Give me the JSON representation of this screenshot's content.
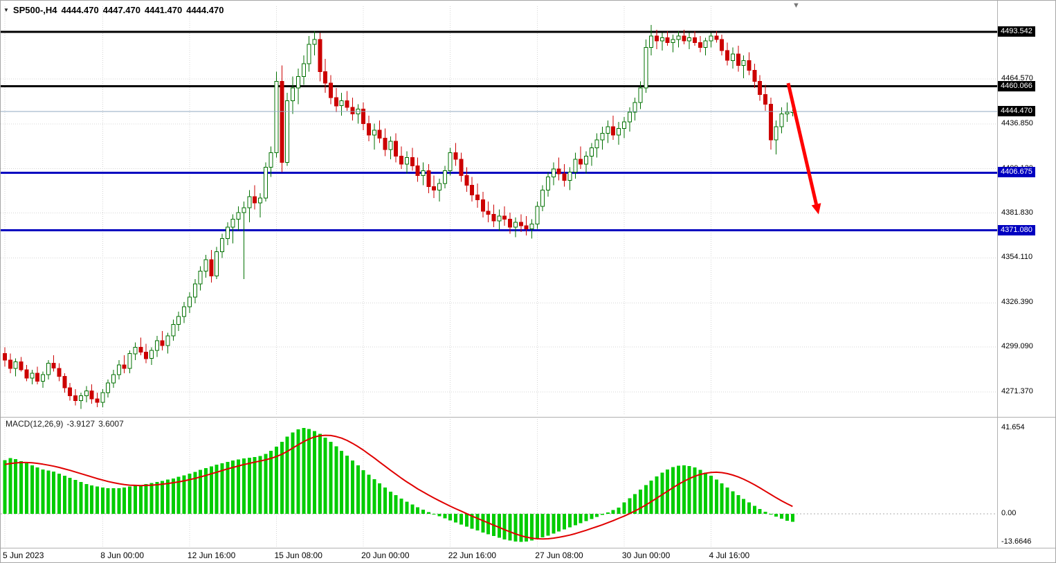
{
  "header": {
    "title": "SP500-,H4",
    "open": "4444.470",
    "high": "4447.470",
    "low": "4441.470",
    "close": "4444.470"
  },
  "macd_label": {
    "name": "MACD(12,26,9)",
    "value": "-3.9127",
    "signal": "3.6007"
  },
  "colors": {
    "up_candle": "#FFFFFF",
    "up_border": "#007000",
    "down_candle": "#CC0000",
    "macd_bar": "#00CC00",
    "macd_signal": "#E00000",
    "level_black": "#000000",
    "level_blue": "#0000C0",
    "current_price_line": "#8FA8C0",
    "arrow": "#FF0000"
  },
  "chart_data": {
    "type": "candlestick",
    "title": "SP500-,H4",
    "panes": [
      "price",
      "macd"
    ],
    "x_ticks": [
      {
        "label": "5 Jun 2023",
        "i": 0
      },
      {
        "label": "8 Jun 00:00",
        "i": 18
      },
      {
        "label": "12 Jun 16:00",
        "i": 34
      },
      {
        "label": "15 Jun 08:00",
        "i": 50
      },
      {
        "label": "20 Jun 00:00",
        "i": 66
      },
      {
        "label": "22 Jun 16:00",
        "i": 82
      },
      {
        "label": "27 Jun 08:00",
        "i": 98
      },
      {
        "label": "30 Jun 00:00",
        "i": 114
      },
      {
        "label": "4 Jul 16:00",
        "i": 130
      }
    ],
    "y_ticks": [
      {
        "label": "4464.570",
        "v": 4464.57
      },
      {
        "label": "4436.850",
        "v": 4436.85
      },
      {
        "label": "4409.120",
        "v": 4409.12
      },
      {
        "label": "4381.830",
        "v": 4381.83
      },
      {
        "label": "4354.110",
        "v": 4354.11
      },
      {
        "label": "4326.390",
        "v": 4326.39
      },
      {
        "label": "4299.090",
        "v": 4299.09
      },
      {
        "label": "4271.370",
        "v": 4271.37
      }
    ],
    "levels": [
      {
        "label": "4493.542",
        "price": 4493.542,
        "color": "#000000"
      },
      {
        "label": "4460.066",
        "price": 4460.066,
        "color": "#000000"
      },
      {
        "label": "4406.675",
        "price": 4406.675,
        "color": "#0000C0"
      },
      {
        "label": "4371.080",
        "price": 4371.08,
        "color": "#0000C0"
      }
    ],
    "current_price": {
      "label": "4444.470",
      "value": 4444.47
    },
    "arrow": {
      "from_i": 144.2,
      "from_price": 4462,
      "to_i": 149.8,
      "to_price": 4381,
      "width": 5
    },
    "ohlc": [
      [
        4295,
        4299,
        4287,
        4291
      ],
      [
        4291,
        4295,
        4283,
        4286
      ],
      [
        4286,
        4292,
        4281,
        4290
      ],
      [
        4290,
        4293,
        4284,
        4285
      ],
      [
        4285,
        4288,
        4278,
        4280
      ],
      [
        4280,
        4285,
        4276,
        4283
      ],
      [
        4283,
        4287,
        4276,
        4278
      ],
      [
        4278,
        4284,
        4274,
        4282
      ],
      [
        4282,
        4291,
        4279,
        4289
      ],
      [
        4289,
        4294,
        4284,
        4286
      ],
      [
        4286,
        4289,
        4278,
        4281
      ],
      [
        4281,
        4283,
        4271,
        4274
      ],
      [
        4274,
        4277,
        4266,
        4269
      ],
      [
        4269,
        4273,
        4263,
        4266
      ],
      [
        4266,
        4271,
        4261,
        4269
      ],
      [
        4269,
        4275,
        4265,
        4272
      ],
      [
        4272,
        4276,
        4264,
        4267
      ],
      [
        4267,
        4271,
        4262,
        4265
      ],
      [
        4265,
        4273,
        4262,
        4271
      ],
      [
        4271,
        4279,
        4268,
        4277
      ],
      [
        4277,
        4285,
        4274,
        4282
      ],
      [
        4282,
        4291,
        4279,
        4288
      ],
      [
        4288,
        4294,
        4283,
        4286
      ],
      [
        4286,
        4297,
        4283,
        4295
      ],
      [
        4295,
        4302,
        4291,
        4299
      ],
      [
        4299,
        4305,
        4294,
        4296
      ],
      [
        4296,
        4301,
        4289,
        4292
      ],
      [
        4292,
        4299,
        4288,
        4297
      ],
      [
        4297,
        4306,
        4293,
        4303
      ],
      [
        4303,
        4309,
        4297,
        4300
      ],
      [
        4300,
        4308,
        4295,
        4306
      ],
      [
        4306,
        4316,
        4303,
        4313
      ],
      [
        4313,
        4321,
        4309,
        4318
      ],
      [
        4318,
        4327,
        4314,
        4324
      ],
      [
        4324,
        4333,
        4320,
        4330
      ],
      [
        4330,
        4341,
        4326,
        4338
      ],
      [
        4338,
        4349,
        4334,
        4346
      ],
      [
        4346,
        4356,
        4342,
        4353
      ],
      [
        4353,
        4359,
        4339,
        4343
      ],
      [
        4343,
        4361,
        4341,
        4358
      ],
      [
        4358,
        4369,
        4354,
        4366
      ],
      [
        4366,
        4376,
        4362,
        4373
      ],
      [
        4373,
        4381,
        4363,
        4378
      ],
      [
        4378,
        4386,
        4371,
        4382
      ],
      [
        4382,
        4389,
        4341,
        4385
      ],
      [
        4385,
        4396,
        4376,
        4392
      ],
      [
        4392,
        4399,
        4384,
        4388
      ],
      [
        4388,
        4394,
        4379,
        4391
      ],
      [
        4391,
        4413,
        4389,
        4410
      ],
      [
        4410,
        4423,
        4404,
        4419
      ],
      [
        4419,
        4469,
        4416,
        4463
      ],
      [
        4463,
        4473,
        4407,
        4413
      ],
      [
        4413,
        4456,
        4411,
        4451
      ],
      [
        4451,
        4466,
        4443,
        4459
      ],
      [
        4459,
        4471,
        4449,
        4466
      ],
      [
        4466,
        4479,
        4461,
        4474
      ],
      [
        4474,
        4491,
        4469,
        4486
      ],
      [
        4486,
        4494,
        4479,
        4489
      ],
      [
        4489,
        4493,
        4463,
        4469
      ],
      [
        4469,
        4477,
        4456,
        4462
      ],
      [
        4462,
        4467,
        4449,
        4453
      ],
      [
        4453,
        4459,
        4444,
        4448
      ],
      [
        4448,
        4456,
        4442,
        4451
      ],
      [
        4451,
        4457,
        4445,
        4447
      ],
      [
        4447,
        4453,
        4439,
        4443
      ],
      [
        4443,
        4449,
        4437,
        4446
      ],
      [
        4446,
        4450,
        4433,
        4437
      ],
      [
        4437,
        4442,
        4426,
        4430
      ],
      [
        4430,
        4437,
        4421,
        4433
      ],
      [
        4433,
        4439,
        4425,
        4428
      ],
      [
        4428,
        4434,
        4417,
        4421
      ],
      [
        4421,
        4429,
        4415,
        4426
      ],
      [
        4426,
        4431,
        4413,
        4417
      ],
      [
        4417,
        4423,
        4409,
        4412
      ],
      [
        4412,
        4420,
        4406,
        4416
      ],
      [
        4416,
        4422,
        4408,
        4411
      ],
      [
        4411,
        4416,
        4401,
        4405
      ],
      [
        4405,
        4413,
        4399,
        4408
      ],
      [
        4408,
        4412,
        4394,
        4398
      ],
      [
        4398,
        4405,
        4391,
        4396
      ],
      [
        4396,
        4403,
        4389,
        4400
      ],
      [
        4400,
        4411,
        4397,
        4408
      ],
      [
        4408,
        4422,
        4405,
        4419
      ],
      [
        4419,
        4425,
        4411,
        4415
      ],
      [
        4415,
        4419,
        4401,
        4405
      ],
      [
        4405,
        4410,
        4395,
        4399
      ],
      [
        4399,
        4404,
        4389,
        4393
      ],
      [
        4393,
        4400,
        4385,
        4390
      ],
      [
        4390,
        4395,
        4379,
        4383
      ],
      [
        4383,
        4389,
        4376,
        4381
      ],
      [
        4381,
        4387,
        4373,
        4377
      ],
      [
        4377,
        4384,
        4371,
        4380
      ],
      [
        4380,
        4386,
        4374,
        4378
      ],
      [
        4378,
        4382,
        4369,
        4373
      ],
      [
        4373,
        4379,
        4367,
        4376
      ],
      [
        4376,
        4381,
        4370,
        4374
      ],
      [
        4374,
        4380,
        4368,
        4372
      ],
      [
        4372,
        4378,
        4366,
        4375
      ],
      [
        4375,
        4389,
        4372,
        4386
      ],
      [
        4386,
        4399,
        4383,
        4396
      ],
      [
        4396,
        4407,
        4392,
        4404
      ],
      [
        4404,
        4413,
        4399,
        4409
      ],
      [
        4409,
        4416,
        4402,
        4406
      ],
      [
        4406,
        4412,
        4398,
        4402
      ],
      [
        4402,
        4410,
        4396,
        4407
      ],
      [
        4407,
        4419,
        4403,
        4415
      ],
      [
        4415,
        4423,
        4409,
        4412
      ],
      [
        4412,
        4420,
        4406,
        4417
      ],
      [
        4417,
        4425,
        4411,
        4422
      ],
      [
        4422,
        4431,
        4416,
        4427
      ],
      [
        4427,
        4435,
        4421,
        4431
      ],
      [
        4431,
        4439,
        4425,
        4435
      ],
      [
        4435,
        4442,
        4427,
        4430
      ],
      [
        4430,
        4438,
        4424,
        4434
      ],
      [
        4434,
        4441,
        4428,
        4438
      ],
      [
        4438,
        4447,
        4432,
        4444
      ],
      [
        4444,
        4453,
        4439,
        4450
      ],
      [
        4450,
        4463,
        4446,
        4459
      ],
      [
        4459,
        4489,
        4456,
        4484
      ],
      [
        4484,
        4498,
        4479,
        4491
      ],
      [
        4491,
        4495,
        4483,
        4488
      ],
      [
        4488,
        4493,
        4482,
        4490
      ],
      [
        4490,
        4494,
        4485,
        4487
      ],
      [
        4487,
        4492,
        4481,
        4489
      ],
      [
        4489,
        4494,
        4484,
        4491
      ],
      [
        4491,
        4495,
        4486,
        4488
      ],
      [
        4488,
        4493,
        4483,
        4490
      ],
      [
        4490,
        4494,
        4485,
        4487
      ],
      [
        4487,
        4491,
        4481,
        4484
      ],
      [
        4484,
        4490,
        4479,
        4488
      ],
      [
        4488,
        4493,
        4484,
        4491
      ],
      [
        4491,
        4494,
        4487,
        4489
      ],
      [
        4489,
        4492,
        4479,
        4482
      ],
      [
        4482,
        4487,
        4473,
        4476
      ],
      [
        4476,
        4484,
        4471,
        4480
      ],
      [
        4480,
        4485,
        4469,
        4473
      ],
      [
        4473,
        4479,
        4465,
        4476
      ],
      [
        4476,
        4481,
        4467,
        4470
      ],
      [
        4470,
        4474,
        4459,
        4463
      ],
      [
        4463,
        4467,
        4451,
        4455
      ],
      [
        4455,
        4461,
        4445,
        4449
      ],
      [
        4449,
        4453,
        4421,
        4427
      ],
      [
        4427,
        4439,
        4418,
        4435
      ],
      [
        4435,
        4447,
        4431,
        4443
      ],
      [
        4443,
        4450,
        4438,
        4444
      ],
      [
        4444.47,
        4447.47,
        4441.47,
        4444.47
      ]
    ],
    "macd": {
      "y_ticks": [
        {
          "label": "41.654",
          "v": 41.654
        },
        {
          "label": "0.00",
          "v": 0
        },
        {
          "label": "-13.6646",
          "v": -13.6646
        }
      ],
      "histogram": [
        26,
        27,
        26.5,
        25.5,
        24.5,
        23.5,
        22.5,
        21.5,
        21,
        20.5,
        19.5,
        18.5,
        17.5,
        16.5,
        15.5,
        14.5,
        13.8,
        13.2,
        12.8,
        12.5,
        12.4,
        12.5,
        12.8,
        13.2,
        13.6,
        14,
        14.5,
        15,
        15.5,
        16,
        16.6,
        17.2,
        17.9,
        18.7,
        19.5,
        20.4,
        21.3,
        22.2,
        23,
        23.8,
        24.5,
        25.2,
        25.8,
        26.3,
        26.8,
        27.2,
        27.6,
        28,
        29,
        30.5,
        32.5,
        35,
        37.5,
        39.5,
        41,
        41.654,
        41.2,
        40.2,
        38.8,
        37,
        35,
        32.8,
        30.5,
        28.2,
        25.8,
        23.5,
        21.2,
        19,
        16.8,
        14.7,
        12.7,
        10.8,
        9,
        7.4,
        5.9,
        4.5,
        3.2,
        2,
        0.9,
        -0.2,
        -1.2,
        -2.2,
        -3.2,
        -4.2,
        -5.2,
        -6.2,
        -7.2,
        -8.1,
        -9,
        -9.9,
        -10.8,
        -11.6,
        -12.4,
        -13,
        -13.5,
        -13.6646,
        -13.4,
        -12.9,
        -12.2,
        -11.4,
        -10.5,
        -9.5,
        -8.5,
        -7.5,
        -6.5,
        -5.5,
        -4.5,
        -3.5,
        -2.5,
        -1.5,
        -0.5,
        0.6,
        1.8,
        3.1,
        5.5,
        7.5,
        9.6,
        11.8,
        14,
        16.2,
        18.2,
        20,
        21.5,
        22.6,
        23.3,
        23.5,
        23.2,
        22.5,
        21.4,
        20,
        18.4,
        16.6,
        14.7,
        12.8,
        10.9,
        9,
        7.2,
        5.5,
        3.9,
        2.4,
        1,
        -0.3,
        -1.4,
        -2.4,
        -3.3,
        -3.9127
      ],
      "signal": [
        24,
        24.4,
        24.7,
        24.9,
        24.9,
        24.8,
        24.5,
        24.1,
        23.6,
        23.1,
        22.5,
        21.8,
        21.1,
        20.3,
        19.5,
        18.7,
        17.9,
        17.1,
        16.4,
        15.7,
        15.1,
        14.6,
        14.2,
        13.9,
        13.8,
        13.7,
        13.8,
        13.9,
        14.1,
        14.4,
        14.7,
        15.1,
        15.5,
        16,
        16.6,
        17.2,
        17.9,
        18.6,
        19.4,
        20.2,
        21,
        21.8,
        22.5,
        23.2,
        23.9,
        24.5,
        25.1,
        25.6,
        26.2,
        26.9,
        27.8,
        28.9,
        30.3,
        31.9,
        33.5,
        35,
        36.3,
        37.3,
        37.9,
        38.1,
        38,
        37.5,
        36.7,
        35.6,
        34.2,
        32.6,
        30.9,
        29,
        27.1,
        25.1,
        23.1,
        21.1,
        19.2,
        17.3,
        15.5,
        13.8,
        12.1,
        10.6,
        9.1,
        7.7,
        6.3,
        5,
        3.7,
        2.5,
        1.3,
        0.1,
        -1.1,
        -2.2,
        -3.3,
        -4.4,
        -5.5,
        -6.6,
        -7.7,
        -8.7,
        -9.7,
        -10.6,
        -11.3,
        -11.8,
        -12.1,
        -12.2,
        -12.1,
        -11.8,
        -11.4,
        -10.9,
        -10.3,
        -9.6,
        -8.8,
        -8,
        -7.1,
        -6.2,
        -5.3,
        -4.3,
        -3.3,
        -2.2,
        -1.1,
        0.1,
        1.4,
        2.8,
        4.3,
        5.9,
        7.6,
        9.3,
        11,
        12.7,
        14.3,
        15.8,
        17.1,
        18.2,
        19.1,
        19.7,
        20.1,
        20.2,
        20,
        19.5,
        18.8,
        17.9,
        16.8,
        15.5,
        14.1,
        12.6,
        11,
        9.4,
        7.8,
        6.3,
        4.9,
        3.6007
      ]
    }
  }
}
